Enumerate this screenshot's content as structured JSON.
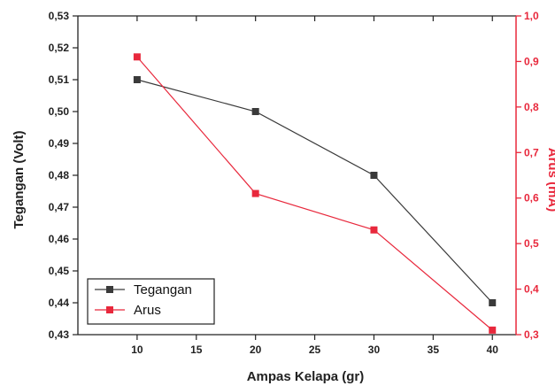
{
  "chart_data": {
    "type": "line",
    "x": [
      10,
      20,
      30,
      40
    ],
    "xlabel": "Ampas Kelapa (gr)",
    "xlim": [
      5,
      42
    ],
    "xticks": [
      10,
      15,
      20,
      25,
      30,
      35,
      40
    ],
    "xtick_labels": [
      "10",
      "15",
      "20",
      "25",
      "30",
      "35",
      "40"
    ],
    "y_left": {
      "label": "Tegangan (Volt)",
      "lim": [
        0.43,
        0.53
      ],
      "ticks": [
        0.43,
        0.44,
        0.45,
        0.46,
        0.47,
        0.48,
        0.49,
        0.5,
        0.51,
        0.52,
        0.53
      ],
      "tick_labels": [
        "0,43",
        "0,44",
        "0,45",
        "0,46",
        "0,47",
        "0,48",
        "0,49",
        "0,50",
        "0,51",
        "0,52",
        "0,53"
      ],
      "color": "#222222"
    },
    "y_right": {
      "label": "Arus (mA)",
      "lim": [
        0.3,
        1.0
      ],
      "ticks": [
        0.3,
        0.4,
        0.5,
        0.6,
        0.7,
        0.8,
        0.9,
        1.0
      ],
      "tick_labels": [
        "0,3",
        "0,4",
        "0,5",
        "0,6",
        "0,7",
        "0,8",
        "0,9",
        "1,0"
      ],
      "color": "#e8283c"
    },
    "series": [
      {
        "name": "Tegangan",
        "axis": "left",
        "values": [
          0.51,
          0.5,
          0.48,
          0.44
        ],
        "color": "#3a3a3a",
        "marker": "square"
      },
      {
        "name": "Arus",
        "axis": "right",
        "values": [
          0.91,
          0.61,
          0.53,
          0.31
        ],
        "color": "#e8283c",
        "marker": "square"
      }
    ],
    "legend_position": "bottom-left",
    "grid": false
  }
}
